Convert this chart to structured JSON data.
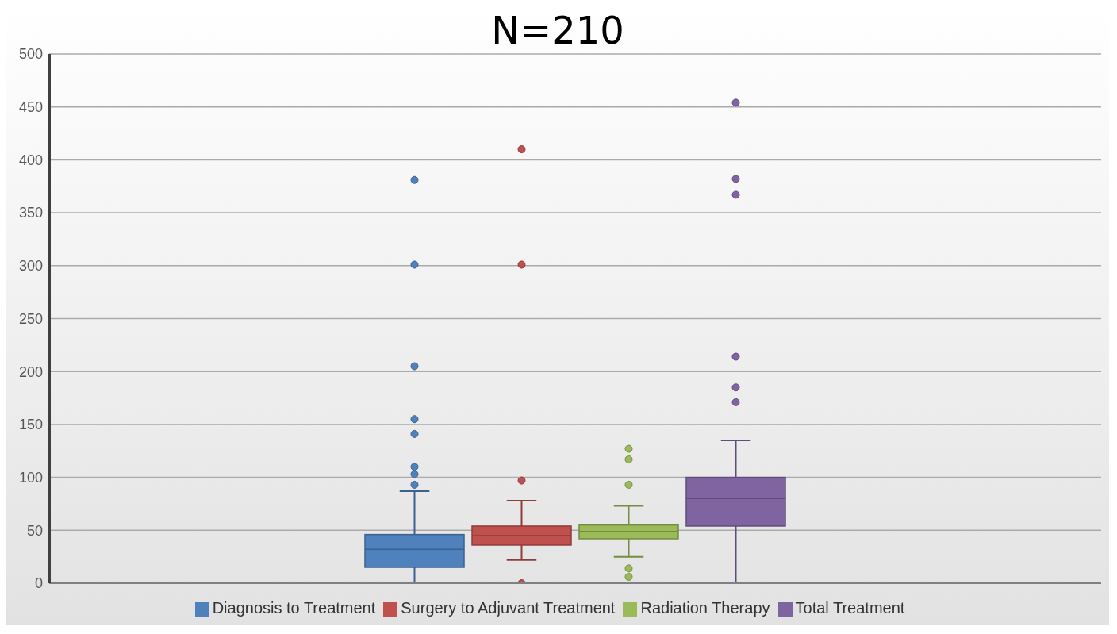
{
  "chart_data": {
    "type": "box",
    "title": "N=210",
    "categories": [
      null
    ],
    "series": [
      {
        "name": "Diagnosis to Treatment",
        "color": "#4f81bd",
        "boxes": [
          {
            "low": 0,
            "q1": 15,
            "median": 32,
            "q3": 46,
            "high": 87,
            "outliers": [
              93,
              103,
              110,
              141,
              155,
              205,
              301,
              381
            ]
          }
        ]
      },
      {
        "name": "Surgery to Adjuvant Treatment",
        "color": "#c0504d",
        "boxes": [
          {
            "low": 22,
            "q1": 36,
            "median": 45,
            "q3": 54,
            "high": 78,
            "outliers": [
              0,
              97,
              301,
              410
            ]
          }
        ]
      },
      {
        "name": "Radiation Therapy",
        "color": "#9bbb59",
        "boxes": [
          {
            "low": 25,
            "q1": 42,
            "median": 49,
            "q3": 55,
            "high": 73,
            "outliers": [
              6,
              14,
              93,
              117,
              127
            ]
          }
        ]
      },
      {
        "name": "Total Treatment",
        "color": "#8064a2",
        "boxes": [
          {
            "low": 0,
            "q1": 54,
            "median": 80,
            "q3": 100,
            "high": 135,
            "outliers": [
              171,
              185,
              214,
              367,
              382,
              454
            ]
          }
        ]
      }
    ],
    "ylim": [
      0,
      500
    ],
    "yticks": [
      0,
      50,
      100,
      150,
      200,
      250,
      300,
      350,
      400,
      450,
      500
    ],
    "grid": "y",
    "legend": "bottom",
    "tick_labels": "y"
  }
}
